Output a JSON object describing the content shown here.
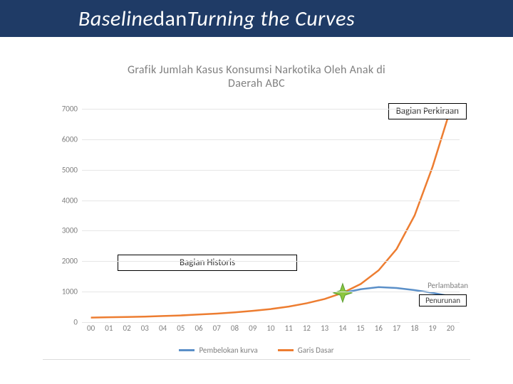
{
  "header": {
    "part1_italic": "Baseline",
    "part2_plain": " dan ",
    "part3_italic": "Turning the Curves",
    "bg_color": "#1f3b66",
    "text_color": "#ffffff",
    "font_size_pt": 30
  },
  "chart": {
    "type": "line",
    "title_line1": "Grafik Jumlah Kasus Konsumsi Narkotika Oleh Anak di",
    "title_line2": "Daerah ABC",
    "title_fontsize": 16,
    "title_color": "#7f7f7f",
    "background_color": "#ffffff",
    "grid_color": "#e6e6e6",
    "axis_text_color": "#7f7f7f",
    "axis_fontsize": 11,
    "y": {
      "min": 0,
      "max": 7000,
      "step": 1000,
      "ticks": [
        "0",
        "1000",
        "2000",
        "3000",
        "4000",
        "5000",
        "6000",
        "7000"
      ]
    },
    "x": {
      "categories": [
        "00",
        "01",
        "02",
        "03",
        "04",
        "05",
        "06",
        "07",
        "08",
        "09",
        "10",
        "11",
        "12",
        "13",
        "14",
        "15",
        "16",
        "17",
        "18",
        "19",
        "20"
      ]
    },
    "series": {
      "baseline": {
        "label": "Garis Dasar",
        "color": "#ed7d31",
        "line_width": 2.5,
        "values": [
          150,
          160,
          170,
          180,
          200,
          220,
          250,
          280,
          320,
          370,
          430,
          510,
          620,
          760,
          960,
          1250,
          1700,
          2400,
          3500,
          5100,
          7000
        ]
      },
      "turning": {
        "label": "Pembelokan kurva",
        "color": "#5a8fc8",
        "line_width": 2.5,
        "start_index": 14,
        "values": [
          960,
          1080,
          1150,
          1120,
          1050,
          960,
          850
        ]
      }
    },
    "star": {
      "x_index": 14,
      "y_value": 960,
      "fill": "#8cc63f",
      "stroke": "#5a9e2f",
      "size": 26
    },
    "annotations": {
      "bagian_historis": {
        "text": "Bagian Historis",
        "boxed": true
      },
      "bagian_perkiraan": {
        "text": "Bagian Perkiraan",
        "boxed": true
      },
      "perlambatan": {
        "text": "Perlambatan",
        "boxed": false
      },
      "penurunan": {
        "text": "Penurunan",
        "boxed": true
      }
    }
  },
  "legend": {
    "item1": "Pembelokan kurva",
    "item2": "Garis Dasar"
  }
}
